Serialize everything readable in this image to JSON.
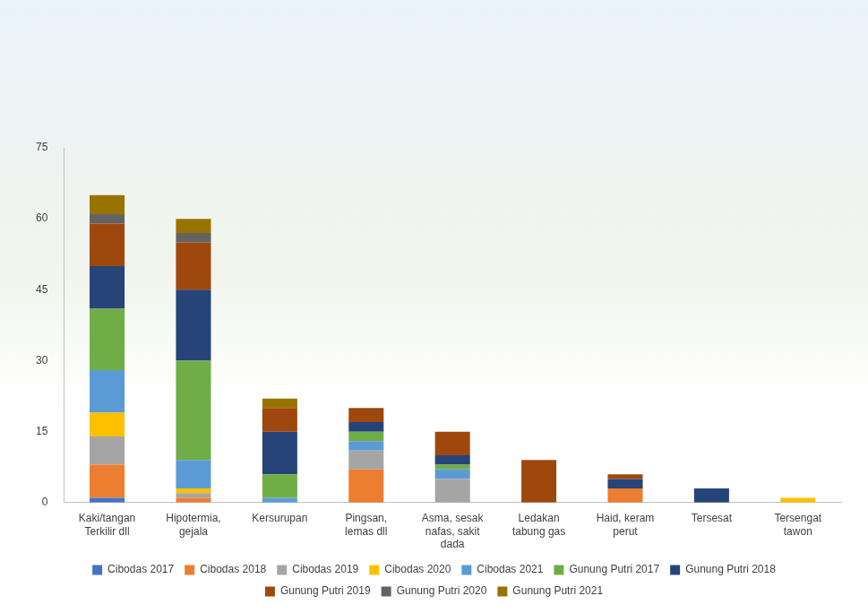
{
  "chart_data": {
    "type": "bar",
    "stacked": true,
    "categories": [
      "Kaki/tangan Terkilir dll",
      "Hipotermia, gejala",
      "Kersurupan",
      "Pingsan, lemas dll",
      "Asma, sesak nafas, sakit dada",
      "Ledakan tabung gas",
      "Haid, keram perut",
      "Tersesat",
      "Tersengat tawon"
    ],
    "series": [
      {
        "name": "Cibodas 2017",
        "color": "#4472c4",
        "values": [
          1,
          0,
          0,
          0,
          0,
          0,
          0,
          0,
          0
        ]
      },
      {
        "name": "Cibodas 2018",
        "color": "#ed7d31",
        "values": [
          7,
          1,
          0,
          7,
          0,
          0,
          3,
          0,
          0
        ]
      },
      {
        "name": "Cibodas 2019",
        "color": "#a5a5a5",
        "values": [
          6,
          1,
          0,
          4,
          5,
          0,
          0,
          0,
          0
        ]
      },
      {
        "name": "Cibodas 2020",
        "color": "#ffc000",
        "values": [
          5,
          1,
          0,
          0,
          0,
          0,
          0,
          0,
          1
        ]
      },
      {
        "name": "Cibodas 2021",
        "color": "#5b9bd5",
        "values": [
          9,
          6,
          1,
          2,
          2,
          0,
          0,
          0,
          0
        ]
      },
      {
        "name": "Gunung Putri 2017",
        "color": "#70ad47",
        "values": [
          13,
          21,
          5,
          2,
          1,
          0,
          0,
          0,
          0
        ]
      },
      {
        "name": "Gunung Putri 2018",
        "color": "#264478",
        "values": [
          9,
          15,
          9,
          2,
          2,
          0,
          2,
          3,
          0
        ]
      },
      {
        "name": "Gunung Putri 2019",
        "color": "#9e480e",
        "values": [
          9,
          10,
          5,
          3,
          5,
          9,
          1,
          0,
          0
        ]
      },
      {
        "name": "Gunung Putri 2020",
        "color": "#636363",
        "values": [
          2,
          2,
          0,
          0,
          0,
          0,
          0,
          0,
          0
        ]
      },
      {
        "name": "Gunung Putri 2021",
        "color": "#997300",
        "values": [
          4,
          3,
          2,
          0,
          0,
          0,
          0,
          0,
          0
        ]
      }
    ],
    "ylim": [
      0,
      75
    ],
    "yticks": [
      0,
      15,
      30,
      45,
      60,
      75
    ],
    "grid": false,
    "legend": "bottom"
  }
}
